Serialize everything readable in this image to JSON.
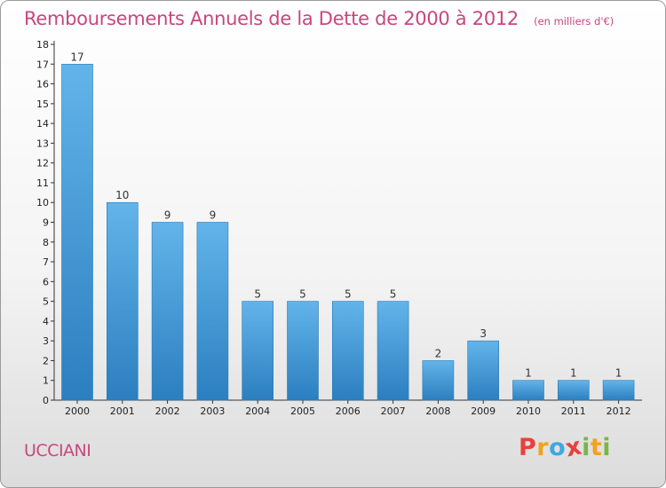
{
  "title": "Remboursements Annuels de la Dette de 2000 à 2012",
  "subtitle": "(en milliers d'€)",
  "city": "UCCIANI",
  "logo": {
    "letters": [
      "P",
      "r",
      "o",
      "x",
      "i",
      "t",
      "i"
    ],
    "colors": [
      "#e8413c",
      "#f2a21c",
      "#3fa9dd",
      "#e8413c",
      "#7ab648",
      "#f2a21c",
      "#7ab648"
    ]
  },
  "colors": {
    "title": "#c8467f",
    "bar_top": "#62b4ea",
    "bar_bottom": "#2c7fbf"
  },
  "chart_data": {
    "type": "bar",
    "categories": [
      "2000",
      "2001",
      "2002",
      "2003",
      "2004",
      "2005",
      "2006",
      "2007",
      "2008",
      "2009",
      "2010",
      "2011",
      "2012"
    ],
    "values": [
      17,
      10,
      9,
      9,
      5,
      5,
      5,
      5,
      2,
      3,
      1,
      1,
      1
    ],
    "ylim": [
      0,
      18
    ],
    "yticks": [
      "0",
      "1",
      "2",
      "3",
      "4",
      "5",
      "6",
      "7",
      "8",
      "9",
      "10",
      "11",
      "12",
      "13",
      "14",
      "15",
      "16",
      "17",
      "18"
    ],
    "grid": false,
    "data_labels": true
  }
}
